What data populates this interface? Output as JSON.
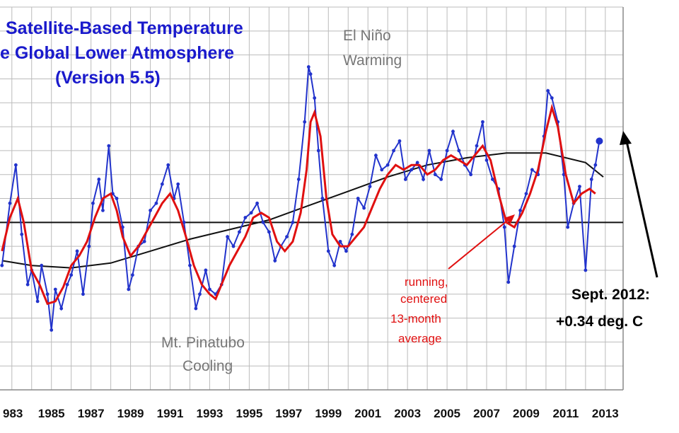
{
  "chart_data": {
    "type": "line",
    "title_lines": [
      "Satellite-Based Temperature",
      "e Global Lower Atmosphere",
      "(Version 5.5)"
    ],
    "x_tick_labels": [
      "983",
      "1985",
      "1987",
      "1989",
      "1991",
      "1993",
      "1995",
      "1997",
      "1999",
      "2001",
      "2003",
      "2005",
      "2007",
      "2009",
      "2011",
      "2013"
    ],
    "x_tick_years": [
      1983,
      1985,
      1987,
      1989,
      1991,
      1993,
      1995,
      1997,
      1999,
      2001,
      2003,
      2005,
      2007,
      2009,
      2011,
      2013
    ],
    "xlim": [
      1982.4,
      2013.9
    ],
    "ylim": [
      -0.7,
      0.9
    ],
    "zero_line": 0,
    "grid": true,
    "colors": {
      "monthly": "#2233cc",
      "running": "#e01010",
      "trend": "#111111",
      "title": "#1a1acc",
      "annotation_gray": "#777777",
      "grid": "#bbbbbb"
    },
    "series": [
      {
        "key": "monthly",
        "x": [
          1982.5,
          1982.9,
          1983.2,
          1983.5,
          1983.8,
          1984.0,
          1984.3,
          1984.5,
          1984.8,
          1985.0,
          1985.2,
          1985.5,
          1985.8,
          1986.0,
          1986.3,
          1986.6,
          1986.9,
          1987.1,
          1987.4,
          1987.6,
          1987.9,
          1988.1,
          1988.3,
          1988.6,
          1988.9,
          1989.1,
          1989.4,
          1989.7,
          1990.0,
          1990.3,
          1990.6,
          1990.9,
          1991.2,
          1991.4,
          1991.7,
          1992.0,
          1992.3,
          1992.5,
          1992.8,
          1993.0,
          1993.3,
          1993.6,
          1993.9,
          1994.2,
          1994.5,
          1994.8,
          1995.1,
          1995.4,
          1995.7,
          1996.0,
          1996.3,
          1996.6,
          1996.9,
          1997.2,
          1997.5,
          1997.8,
          1998.0,
          1998.1,
          1998.3,
          1998.5,
          1998.7,
          1999.0,
          1999.3,
          1999.6,
          1999.9,
          2000.2,
          2000.5,
          2000.8,
          2001.1,
          2001.4,
          2001.7,
          2002.0,
          2002.3,
          2002.6,
          2002.9,
          2003.2,
          2003.5,
          2003.8,
          2004.1,
          2004.4,
          2004.7,
          2005.0,
          2005.3,
          2005.6,
          2005.9,
          2006.2,
          2006.5,
          2006.8,
          2007.0,
          2007.3,
          2007.6,
          2007.9,
          2008.1,
          2008.4,
          2008.7,
          2009.0,
          2009.3,
          2009.6,
          2009.9,
          2010.1,
          2010.3,
          2010.6,
          2010.9,
          2011.1,
          2011.4,
          2011.7,
          2012.0,
          2012.3,
          2012.5,
          2012.7
        ],
        "values": [
          -0.18,
          0.08,
          0.24,
          -0.05,
          -0.26,
          -0.2,
          -0.33,
          -0.18,
          -0.3,
          -0.45,
          -0.28,
          -0.36,
          -0.26,
          -0.22,
          -0.12,
          -0.3,
          -0.1,
          0.08,
          0.18,
          0.05,
          0.32,
          0.12,
          0.1,
          -0.02,
          -0.28,
          -0.22,
          -0.1,
          -0.08,
          0.05,
          0.08,
          0.16,
          0.24,
          0.1,
          0.16,
          0.0,
          -0.18,
          -0.36,
          -0.3,
          -0.2,
          -0.28,
          -0.3,
          -0.26,
          -0.06,
          -0.1,
          -0.04,
          0.02,
          0.04,
          0.08,
          0.0,
          -0.04,
          -0.16,
          -0.1,
          -0.06,
          0.0,
          0.18,
          0.42,
          0.65,
          0.62,
          0.52,
          0.3,
          0.1,
          -0.12,
          -0.18,
          -0.08,
          -0.12,
          -0.05,
          0.1,
          0.06,
          0.15,
          0.28,
          0.22,
          0.24,
          0.3,
          0.34,
          0.18,
          0.22,
          0.25,
          0.18,
          0.3,
          0.2,
          0.18,
          0.3,
          0.38,
          0.3,
          0.24,
          0.2,
          0.32,
          0.42,
          0.26,
          0.18,
          0.14,
          -0.02,
          -0.25,
          -0.1,
          0.05,
          0.12,
          0.22,
          0.2,
          0.36,
          0.55,
          0.52,
          0.42,
          0.2,
          -0.02,
          0.08,
          0.15,
          -0.2,
          0.18,
          0.24,
          0.34
        ]
      },
      {
        "key": "running",
        "x": [
          1982.5,
          1982.9,
          1983.3,
          1983.6,
          1984.0,
          1984.4,
          1984.8,
          1985.2,
          1985.6,
          1986.0,
          1986.4,
          1986.8,
          1987.2,
          1987.6,
          1988.0,
          1988.3,
          1988.6,
          1989.0,
          1989.4,
          1989.8,
          1990.2,
          1990.6,
          1991.0,
          1991.4,
          1991.8,
          1992.2,
          1992.6,
          1993.0,
          1993.3,
          1993.6,
          1994.0,
          1994.4,
          1994.8,
          1995.2,
          1995.6,
          1996.0,
          1996.4,
          1996.8,
          1997.2,
          1997.6,
          1997.9,
          1998.1,
          1998.3,
          1998.6,
          1998.9,
          1999.2,
          1999.6,
          2000.0,
          2000.4,
          2000.8,
          2001.2,
          2001.6,
          2002.0,
          2002.4,
          2002.8,
          2003.2,
          2003.6,
          2004.0,
          2004.4,
          2004.8,
          2005.2,
          2005.6,
          2006.0,
          2006.4,
          2006.8,
          2007.2,
          2007.6,
          2008.0,
          2008.4,
          2008.8,
          2009.2,
          2009.6,
          2010.0,
          2010.3,
          2010.6,
          2011.0,
          2011.4,
          2011.8,
          2012.2,
          2012.5
        ],
        "values": [
          -0.12,
          0.02,
          0.1,
          0.0,
          -0.2,
          -0.26,
          -0.34,
          -0.33,
          -0.27,
          -0.18,
          -0.14,
          -0.08,
          0.02,
          0.1,
          0.12,
          0.05,
          -0.06,
          -0.14,
          -0.1,
          -0.04,
          0.02,
          0.08,
          0.12,
          0.05,
          -0.06,
          -0.18,
          -0.26,
          -0.3,
          -0.32,
          -0.26,
          -0.18,
          -0.12,
          -0.06,
          0.02,
          0.04,
          0.02,
          -0.08,
          -0.12,
          -0.08,
          0.04,
          0.22,
          0.42,
          0.46,
          0.36,
          0.1,
          -0.05,
          -0.1,
          -0.1,
          -0.06,
          -0.02,
          0.06,
          0.14,
          0.2,
          0.24,
          0.22,
          0.24,
          0.24,
          0.2,
          0.22,
          0.26,
          0.28,
          0.26,
          0.24,
          0.28,
          0.32,
          0.26,
          0.12,
          0.0,
          -0.02,
          0.04,
          0.12,
          0.22,
          0.38,
          0.48,
          0.4,
          0.2,
          0.08,
          0.12,
          0.14,
          0.12
        ]
      },
      {
        "key": "trend",
        "x": [
          1982.5,
          1984.0,
          1986.0,
          1988.0,
          1990.0,
          1992.0,
          1994.0,
          1996.0,
          1998.0,
          2000.0,
          2002.0,
          2004.0,
          2006.0,
          2008.0,
          2010.0,
          2012.0,
          2012.9
        ],
        "values": [
          -0.16,
          -0.18,
          -0.19,
          -0.17,
          -0.12,
          -0.07,
          -0.03,
          0.01,
          0.07,
          0.13,
          0.19,
          0.24,
          0.27,
          0.29,
          0.29,
          0.25,
          0.19
        ]
      }
    ],
    "highlight_point": {
      "x": 2012.7,
      "value": 0.34
    },
    "annotations": {
      "el_nino": [
        "El Niño",
        "Warming"
      ],
      "pinatubo": [
        "Mt. Pinatubo",
        "Cooling"
      ],
      "running": [
        "running,",
        "centered",
        "13-month",
        "average"
      ],
      "sept": [
        "Sept. 2012:",
        "+0.34 deg. C"
      ]
    }
  }
}
